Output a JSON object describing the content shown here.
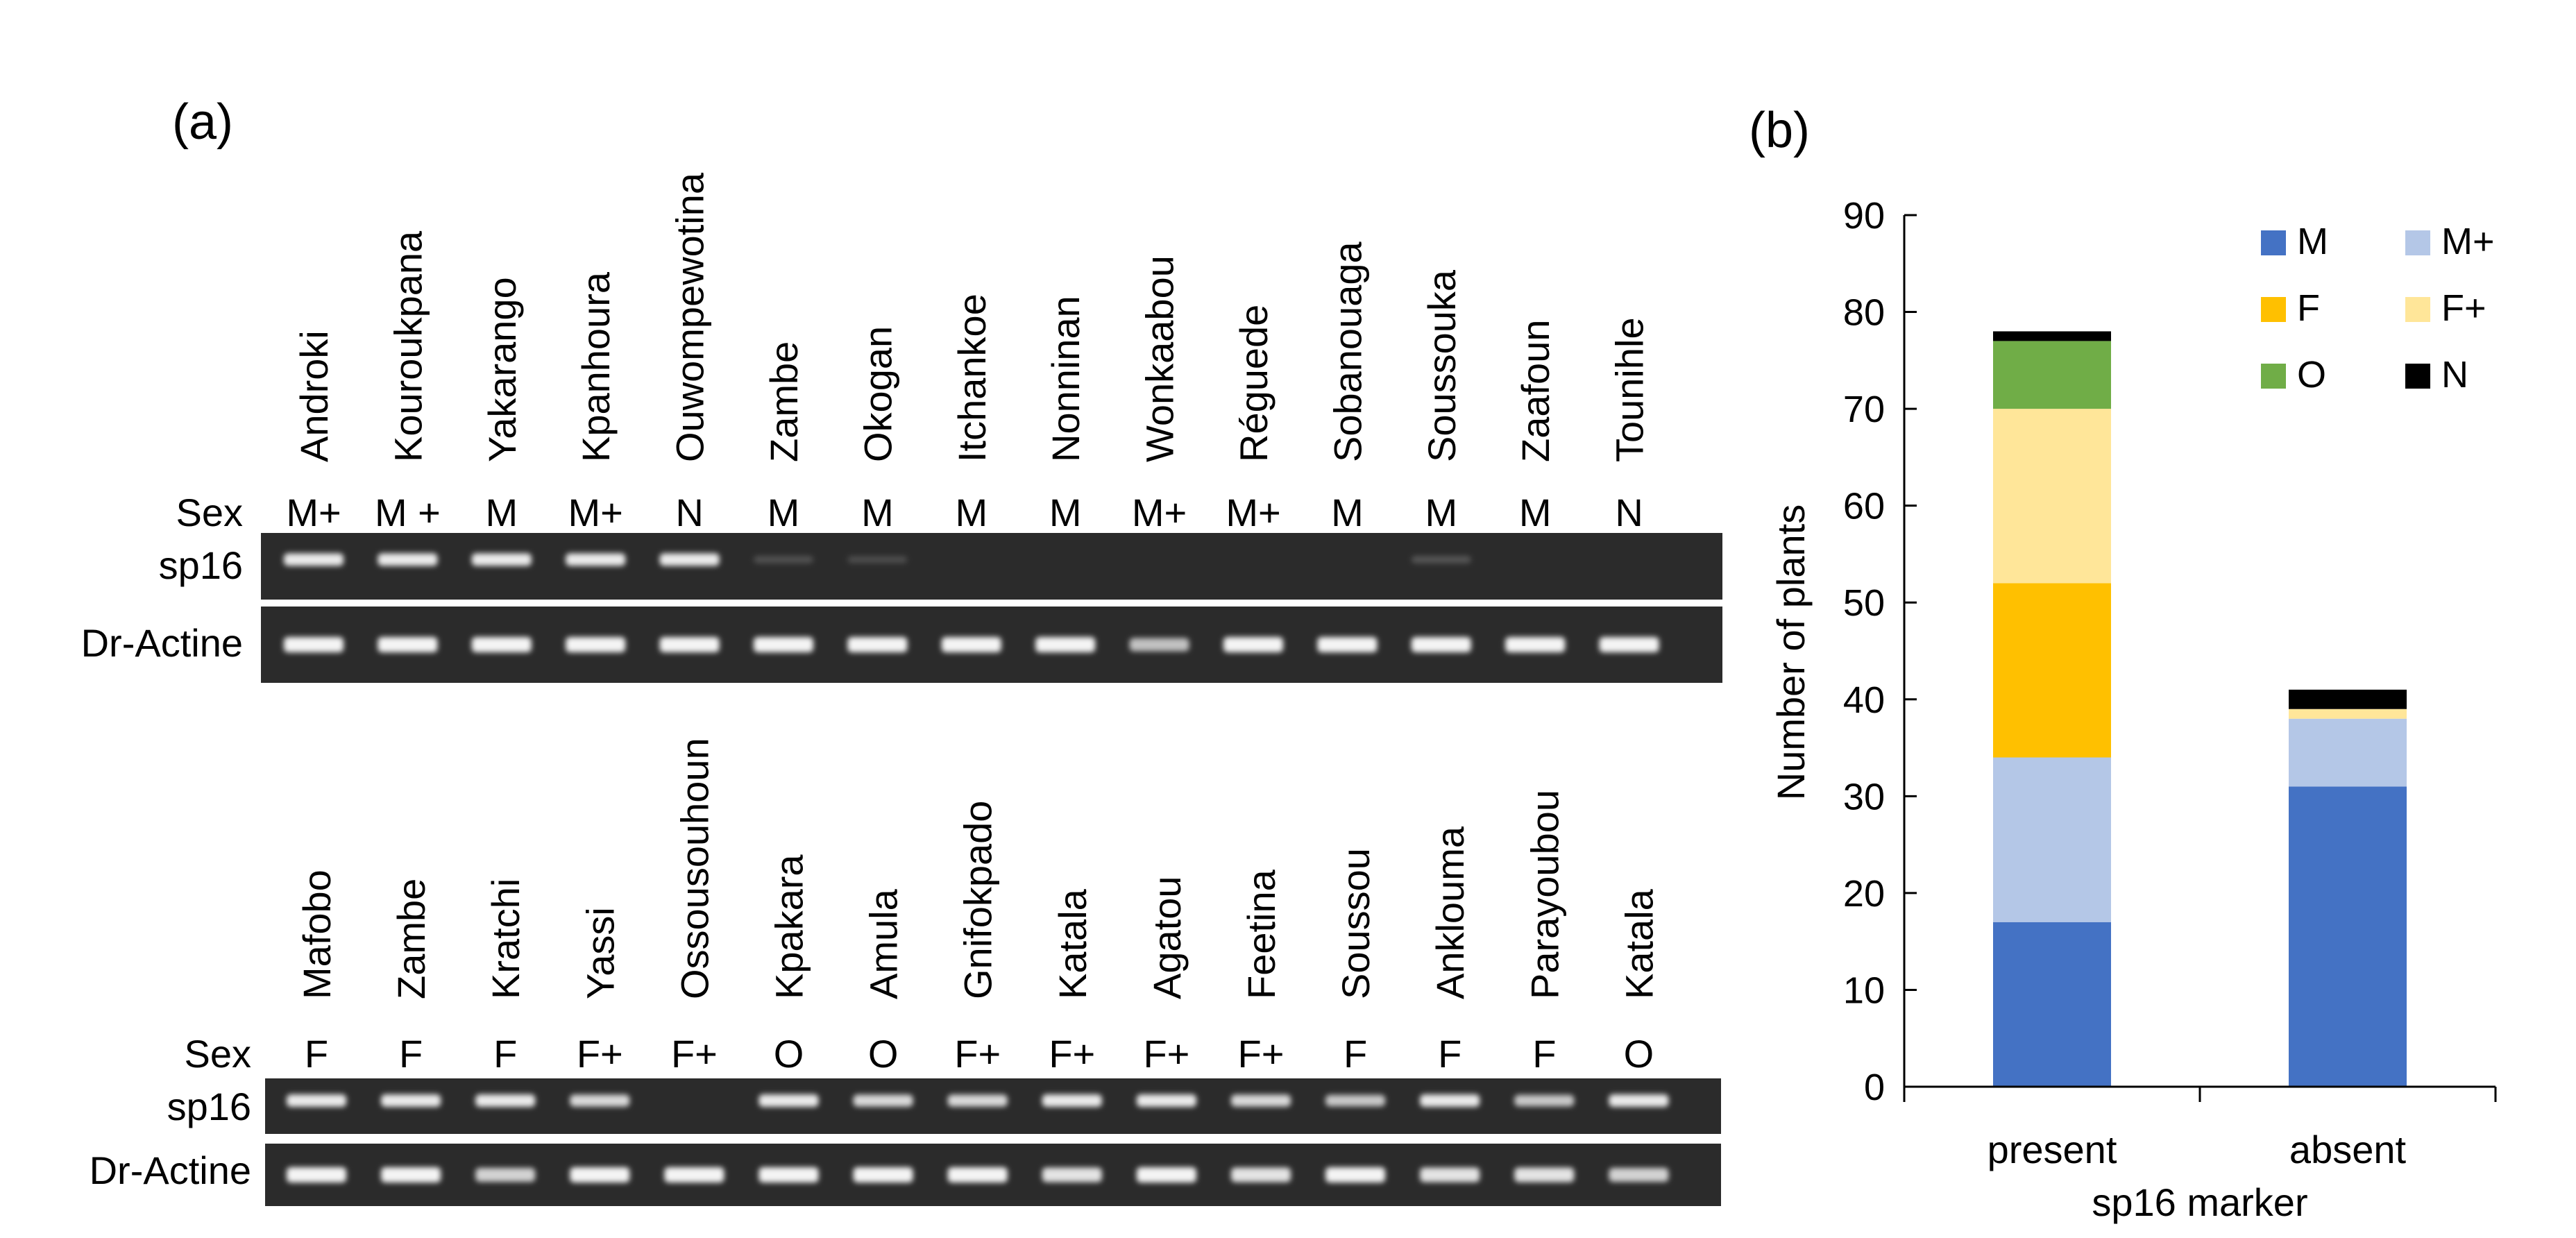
{
  "panel_a": {
    "label": "(a)",
    "sex_label": "Sex",
    "marker_label": "sp16",
    "control_label": "Dr-Actine",
    "gels": [
      {
        "samples": [
          {
            "name": "Androki",
            "sex": "M+",
            "sp16": 1,
            "actin": 1
          },
          {
            "name": "Kouroukpana",
            "sex": "M +",
            "sp16": 1,
            "actin": 1
          },
          {
            "name": "Yakarango",
            "sex": "M",
            "sp16": 1,
            "actin": 1
          },
          {
            "name": "Kpanhoura",
            "sex": "M+",
            "sp16": 1,
            "actin": 1
          },
          {
            "name": "Ouwompewotina",
            "sex": "N",
            "sp16": 1,
            "actin": 1
          },
          {
            "name": "Zambe",
            "sex": "M",
            "sp16": 0.08,
            "actin": 1
          },
          {
            "name": "Okogan",
            "sex": "M",
            "sp16": 0.05,
            "actin": 1
          },
          {
            "name": "Itchankoe",
            "sex": "M",
            "sp16": 0,
            "actin": 1
          },
          {
            "name": "Nonninan",
            "sex": "M",
            "sp16": 0,
            "actin": 1
          },
          {
            "name": "Wonkaabou",
            "sex": "M+",
            "sp16": 0,
            "actin": 0.7
          },
          {
            "name": "Réguede",
            "sex": "M+",
            "sp16": 0,
            "actin": 1
          },
          {
            "name": "Sobanouaga",
            "sex": "M",
            "sp16": 0,
            "actin": 1
          },
          {
            "name": "Soussouka",
            "sex": "M",
            "sp16": 0.1,
            "actin": 1
          },
          {
            "name": "Zaafoun",
            "sex": "M",
            "sp16": 0,
            "actin": 1
          },
          {
            "name": "Tounihle",
            "sex": "N",
            "sp16": 0,
            "actin": 1
          }
        ]
      },
      {
        "samples": [
          {
            "name": "Mafobo",
            "sex": "F",
            "sp16": 1,
            "actin": 1
          },
          {
            "name": "Zambe",
            "sex": "F",
            "sp16": 1,
            "actin": 1
          },
          {
            "name": "Kratchi",
            "sex": "F",
            "sp16": 1,
            "actin": 0.8
          },
          {
            "name": "Yassi",
            "sex": "F+",
            "sp16": 0.9,
            "actin": 1
          },
          {
            "name": "Ossousouhoun",
            "sex": "F+",
            "sp16": 0,
            "actin": 1
          },
          {
            "name": "Kpakara",
            "sex": "O",
            "sp16": 1,
            "actin": 1
          },
          {
            "name": "Amula",
            "sex": "O",
            "sp16": 0.9,
            "actin": 1
          },
          {
            "name": "Gnifokpado",
            "sex": "F+",
            "sp16": 0.9,
            "actin": 1
          },
          {
            "name": "Katala",
            "sex": "F+",
            "sp16": 1,
            "actin": 0.9
          },
          {
            "name": "Agatou",
            "sex": "F+",
            "sp16": 1,
            "actin": 1
          },
          {
            "name": "Feetina",
            "sex": "F+",
            "sp16": 0.9,
            "actin": 0.9
          },
          {
            "name": "Soussou",
            "sex": "F",
            "sp16": 0.8,
            "actin": 1
          },
          {
            "name": "Anklouma",
            "sex": "F",
            "sp16": 1,
            "actin": 0.9
          },
          {
            "name": "Parayoubou",
            "sex": "F",
            "sp16": 0.8,
            "actin": 0.9
          },
          {
            "name": "Katala",
            "sex": "O",
            "sp16": 1,
            "actin": 0.8
          }
        ]
      }
    ]
  },
  "panel_b": {
    "label": "(b)"
  },
  "chart_data": {
    "type": "bar",
    "stacked": true,
    "categories": [
      "present",
      "absent"
    ],
    "xlabel": "sp16 marker",
    "ylabel": "Number of plants",
    "ylim": [
      0,
      90
    ],
    "yticks": [
      0,
      10,
      20,
      30,
      40,
      50,
      60,
      70,
      80,
      90
    ],
    "grid": false,
    "legend_position": "top-right",
    "series": [
      {
        "name": "M",
        "color": "#4472C4",
        "values": [
          17,
          31
        ]
      },
      {
        "name": "M+",
        "color": "#B4C7E7",
        "values": [
          17,
          7
        ]
      },
      {
        "name": "F",
        "color": "#FFC000",
        "values": [
          18,
          0
        ]
      },
      {
        "name": "F+",
        "color": "#FFE699",
        "values": [
          18,
          1
        ]
      },
      {
        "name": "O",
        "color": "#70AD47",
        "values": [
          7,
          0
        ]
      },
      {
        "name": "N",
        "color": "#000000",
        "values": [
          1,
          2
        ]
      }
    ]
  }
}
